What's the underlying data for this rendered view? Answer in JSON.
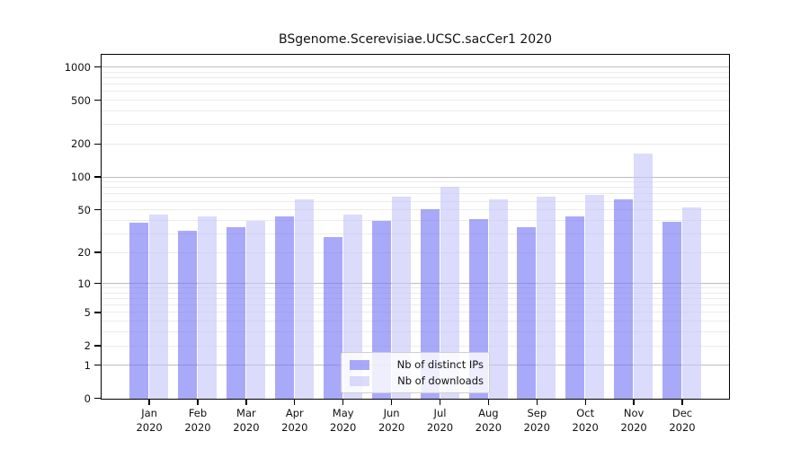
{
  "chart_data": {
    "type": "bar",
    "title": "BSgenome.Scerevisiae.UCSC.sacCer1 2020",
    "categories": [
      "Jan",
      "Feb",
      "Mar",
      "Apr",
      "May",
      "Jun",
      "Jul",
      "Aug",
      "Sep",
      "Oct",
      "Nov",
      "Dec"
    ],
    "category_year": "2020",
    "series": [
      {
        "name": "Nb of distinct IPs",
        "color": "rgba(116,116,247,0.62)",
        "values": [
          38,
          32,
          35,
          44,
          28,
          40,
          51,
          41,
          35,
          44,
          63,
          39
        ]
      },
      {
        "name": "Nb of downloads",
        "color": "rgba(197,197,250,0.62)",
        "values": [
          45,
          44,
          40,
          63,
          45,
          67,
          82,
          63,
          66,
          69,
          165,
          53
        ]
      }
    ],
    "xlabel": "",
    "ylabel": "",
    "yticks": [
      0,
      1,
      2,
      5,
      10,
      20,
      50,
      100,
      200,
      500,
      1000
    ],
    "yaxis_scale": "log10(1+x)",
    "ylim": [
      0,
      1296
    ],
    "grid": true,
    "grid_minor_per_decade": [
      2,
      3,
      4,
      5,
      6,
      7,
      8,
      9
    ],
    "legend_position": "lower-center",
    "colors": {
      "distinct_ips_bar": "rgba(116,116,247,0.62)",
      "downloads_bar": "rgba(197,197,250,0.62)",
      "grid_major": "#bdbdbd",
      "grid_minor": "#ebebeb",
      "axis": "#000000",
      "background": "#ffffff"
    }
  }
}
